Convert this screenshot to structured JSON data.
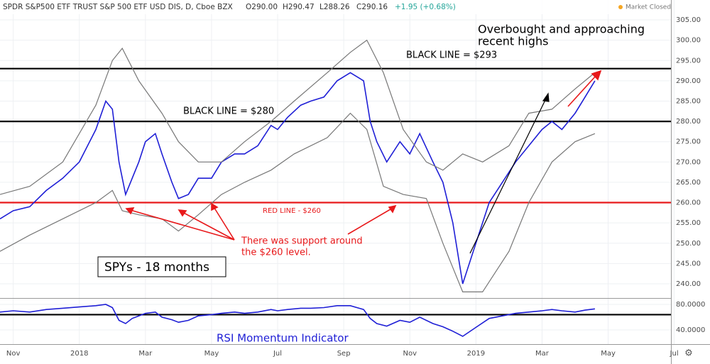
{
  "header": {
    "symbol": "SPDR S&P500 ETF TRUST S&P 500 ETF USD DIS, D, Cboe BZX",
    "open": "O290.00",
    "high": "H290.47",
    "low": "L288.26",
    "close": "C290.16",
    "change": "+1.95 (+0.68%)",
    "status": "Market Closed"
  },
  "chart_data": [
    {
      "type": "line",
      "annotations": {
        "overbought": [
          "Overbought and approaching",
          "recent highs"
        ],
        "support": [
          "There was support around",
          "the $260 level."
        ],
        "box": "SPYs - 18 months"
      },
      "x": [
        -0.4,
        0,
        0.5,
        1,
        1.5,
        2,
        2.5,
        2.8,
        3.0,
        3.2,
        3.4,
        3.6,
        3.8,
        4.0,
        4.3,
        4.5,
        4.8,
        5.0,
        5.3,
        5.6,
        6.0,
        6.3,
        6.7,
        7.0,
        7.4,
        7.8,
        8.0,
        8.3,
        8.7,
        9.0,
        9.4,
        9.8,
        10.2,
        10.6,
        10.8,
        11.0,
        11.3,
        11.7,
        12.0,
        12.3,
        12.7,
        13.0,
        13.3,
        13.6,
        14.0,
        14.4,
        14.8,
        15.2,
        15.6,
        16.0,
        16.3,
        16.6,
        17.0,
        17.3,
        17.6
      ],
      "series": [
        {
          "color": "#1f1fd6",
          "values": [
            256,
            258,
            259,
            263,
            266,
            270,
            278,
            285,
            283,
            270,
            262,
            266,
            270,
            275,
            277,
            272,
            265,
            261,
            262,
            266,
            266,
            270,
            272,
            272,
            274,
            279,
            278,
            281,
            284,
            285,
            286,
            290,
            292,
            290,
            280,
            275,
            270,
            275,
            272,
            277,
            270,
            265,
            255,
            240,
            250,
            260,
            265,
            270,
            274,
            278,
            280,
            278,
            282,
            286,
            290
          ]
        },
        {
          "color": "#777777",
          "x": [
            -0.4,
            0.5,
            1.5,
            2.5,
            3.0,
            3.3,
            3.8,
            4.5,
            5.0,
            5.6,
            6.3,
            7.0,
            7.8,
            8.5,
            9.5,
            10.2,
            10.7,
            11.2,
            11.8,
            12.5,
            13.0,
            13.6,
            14.2,
            15.0,
            15.6,
            16.3,
            17.0,
            17.6
          ],
          "values": [
            262,
            264,
            270,
            284,
            295,
            298,
            290,
            282,
            275,
            270,
            270,
            275,
            280,
            285,
            292,
            297,
            300,
            292,
            278,
            270,
            268,
            272,
            270,
            274,
            282,
            283,
            288,
            292
          ]
        },
        {
          "color": "#777777",
          "x": [
            -0.4,
            0.5,
            1.5,
            2.5,
            3.0,
            3.3,
            3.8,
            4.5,
            5.0,
            5.6,
            6.3,
            7.0,
            7.8,
            8.5,
            9.5,
            10.2,
            10.7,
            11.2,
            11.8,
            12.5,
            13.0,
            13.6,
            14.2,
            15.0,
            15.6,
            16.3,
            17.0,
            17.6
          ],
          "values": [
            248,
            252,
            256,
            260,
            263,
            258,
            257,
            256,
            253,
            257,
            262,
            265,
            268,
            272,
            276,
            282,
            278,
            264,
            262,
            261,
            250,
            238,
            238,
            248,
            260,
            270,
            275,
            277
          ]
        }
      ],
      "hlines": [
        {
          "value": 293,
          "color": "#000000",
          "label": "BLACK LINE = $293"
        },
        {
          "value": 280,
          "color": "#000000",
          "label": "BLACK LINE = $280"
        },
        {
          "value": 260,
          "color": "#e8191b",
          "label": "RED LINE - $260"
        }
      ],
      "xlim": [
        -0.4,
        19.9
      ],
      "xticks": [
        {
          "value": 0,
          "label": "Nov"
        },
        {
          "value": 2,
          "label": "2018"
        },
        {
          "value": 4,
          "label": "Mar"
        },
        {
          "value": 6,
          "label": "May"
        },
        {
          "value": 8,
          "label": "Jul"
        },
        {
          "value": 10,
          "label": "Sep"
        },
        {
          "value": 12,
          "label": "Nov"
        },
        {
          "value": 14,
          "label": "2019"
        },
        {
          "value": 16,
          "label": "Mar"
        },
        {
          "value": 18,
          "label": "May"
        },
        {
          "value": 20,
          "label": "Jul"
        }
      ],
      "ylim": [
        236.5,
        309.9
      ],
      "yticks": [
        {
          "value": 240,
          "label": "240.00"
        },
        {
          "value": 245,
          "label": "245.00"
        },
        {
          "value": 250,
          "label": "250.00"
        },
        {
          "value": 255,
          "label": "255.00"
        },
        {
          "value": 260,
          "label": "260.00"
        },
        {
          "value": 265,
          "label": "265.00"
        },
        {
          "value": 270,
          "label": "270.00"
        },
        {
          "value": 275,
          "label": "275.00"
        },
        {
          "value": 280,
          "label": "280.00"
        },
        {
          "value": 285,
          "label": "285.00"
        },
        {
          "value": 290,
          "label": "290.00"
        },
        {
          "value": 295,
          "label": "295.00"
        },
        {
          "value": 300,
          "label": "300.00"
        },
        {
          "value": 305,
          "label": "305.00"
        }
      ],
      "grid": true
    },
    {
      "type": "line",
      "title": "RSI Momentum Indicator",
      "x": [
        -0.4,
        0,
        0.5,
        1,
        1.5,
        2,
        2.5,
        2.8,
        3.0,
        3.2,
        3.4,
        3.6,
        3.8,
        4.0,
        4.3,
        4.5,
        4.8,
        5.0,
        5.3,
        5.6,
        6.0,
        6.3,
        6.7,
        7.0,
        7.4,
        7.8,
        8.0,
        8.3,
        8.7,
        9.0,
        9.4,
        9.8,
        10.2,
        10.6,
        10.8,
        11.0,
        11.3,
        11.7,
        12.0,
        12.3,
        12.7,
        13.0,
        13.3,
        13.6,
        14.0,
        14.4,
        14.8,
        15.2,
        15.6,
        16.0,
        16.3,
        16.6,
        17.0,
        17.3,
        17.6
      ],
      "series": [
        {
          "color": "#1f1fd6",
          "values": [
            68,
            70,
            68,
            72,
            74,
            76,
            78,
            80,
            75,
            55,
            50,
            58,
            62,
            66,
            68,
            60,
            56,
            52,
            55,
            62,
            64,
            66,
            68,
            66,
            68,
            72,
            70,
            72,
            74,
            74,
            75,
            78,
            78,
            72,
            58,
            50,
            46,
            55,
            52,
            60,
            50,
            45,
            38,
            30,
            44,
            58,
            62,
            66,
            68,
            70,
            72,
            70,
            68,
            71,
            73
          ]
        }
      ],
      "hlines": [
        {
          "value": 64,
          "color": "#000000"
        }
      ],
      "xlim": [
        -0.4,
        19.9
      ],
      "ylim": [
        17.8,
        88.9
      ],
      "yticks": [
        {
          "value": 40,
          "label": "40.0000"
        },
        {
          "value": 80,
          "label": "80.0000"
        }
      ]
    }
  ]
}
